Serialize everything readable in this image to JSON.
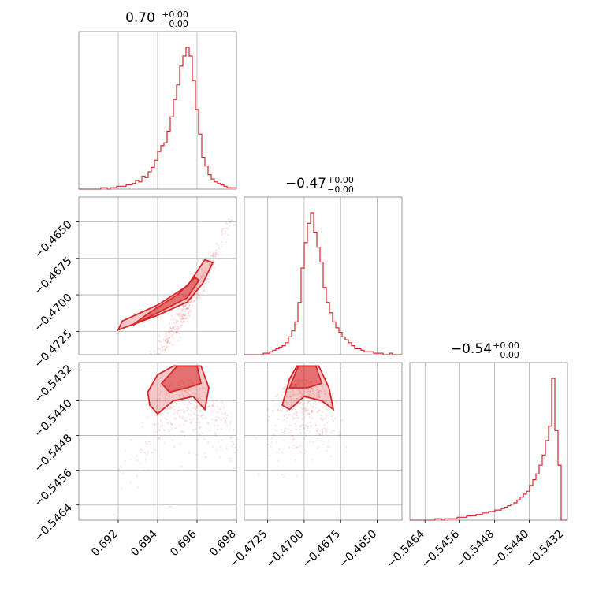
{
  "chart_data": {
    "type": "corner",
    "color": "#d62728",
    "grid": true,
    "parameters": [
      {
        "title_main": "0.70",
        "title_upper": "+0.00",
        "title_lower": "−0.00",
        "range": [
          0.69,
          0.698
        ],
        "ticks": [
          {
            "v": 0.692,
            "t": "0.692"
          },
          {
            "v": 0.694,
            "t": "0.694"
          },
          {
            "v": 0.696,
            "t": "0.696"
          },
          {
            "v": 0.698,
            "t": "0.698"
          }
        ]
      },
      {
        "title_main": "−0.47",
        "title_upper": "+0.00",
        "title_lower": "−0.00",
        "range": [
          -0.4741,
          -0.4633
        ],
        "ticks": [
          {
            "v": -0.4725,
            "t": "−0.4725"
          },
          {
            "v": -0.47,
            "t": "−0.4700"
          },
          {
            "v": -0.4675,
            "t": "−0.4675"
          },
          {
            "v": -0.465,
            "t": "−0.4650"
          }
        ]
      },
      {
        "title_main": "−0.54",
        "title_upper": "+0.00",
        "title_lower": "−0.00",
        "range": [
          -0.54675,
          -0.54312
        ],
        "ticks": [
          {
            "v": -0.5464,
            "t": "−0.5464"
          },
          {
            "v": -0.5456,
            "t": "−0.5456"
          },
          {
            "v": -0.5448,
            "t": "−0.5448"
          },
          {
            "v": -0.544,
            "t": "−0.5440"
          },
          {
            "v": -0.5432,
            "t": "−0.5432"
          }
        ]
      }
    ],
    "histograms": [
      [
        0,
        0,
        0,
        0,
        0,
        0,
        0,
        1,
        1,
        0,
        1,
        1,
        2,
        2,
        2,
        3,
        3,
        4,
        6,
        5,
        9,
        8,
        12,
        15,
        20,
        26,
        30,
        32,
        40,
        50,
        62,
        72,
        85,
        92,
        98,
        92,
        75,
        55,
        38,
        22,
        16,
        10,
        7,
        5,
        4,
        3,
        2,
        1,
        1,
        1
      ],
      [
        0,
        0,
        0,
        0,
        0,
        0,
        1,
        1,
        2,
        3,
        4,
        5,
        6,
        8,
        12,
        16,
        22,
        35,
        58,
        75,
        88,
        95,
        82,
        72,
        62,
        45,
        35,
        28,
        22,
        18,
        15,
        12,
        10,
        8,
        6,
        4,
        4,
        3,
        2,
        2,
        2,
        1,
        1,
        1,
        0,
        0,
        1,
        0,
        0,
        0
      ],
      [
        0,
        0,
        0,
        0,
        0,
        0,
        0,
        0,
        1,
        1,
        0,
        1,
        1,
        1,
        1,
        2,
        2,
        2,
        3,
        3,
        3,
        4,
        4,
        5,
        5,
        6,
        6,
        7,
        7,
        8,
        9,
        10,
        11,
        12,
        14,
        16,
        18,
        20,
        24,
        28,
        32,
        38,
        45,
        55,
        65,
        98,
        62,
        38,
        0,
        0
      ]
    ]
  }
}
